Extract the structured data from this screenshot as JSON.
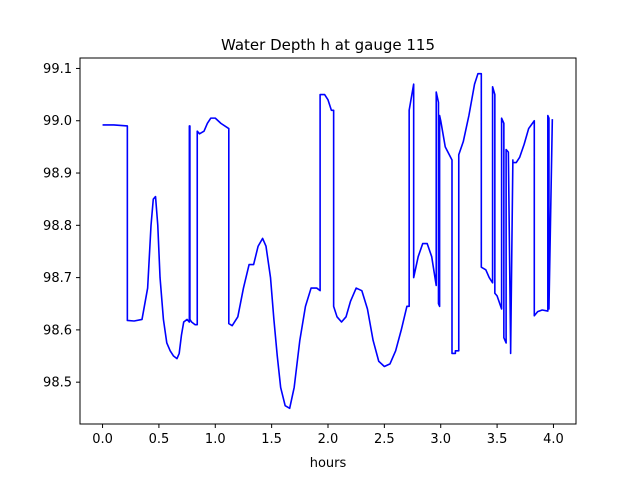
{
  "chart_data": {
    "type": "line",
    "title": "Water Depth h at gauge 115",
    "xlabel": "hours",
    "ylabel": "",
    "xlim": [
      -0.2,
      4.2
    ],
    "ylim": [
      98.42,
      99.12
    ],
    "xticks": [
      0.0,
      0.5,
      1.0,
      1.5,
      2.0,
      2.5,
      3.0,
      3.5,
      4.0
    ],
    "xtick_labels": [
      "0.0",
      "0.5",
      "1.0",
      "1.5",
      "2.0",
      "2.5",
      "3.0",
      "3.5",
      "4.0"
    ],
    "yticks": [
      98.5,
      98.6,
      98.7,
      98.8,
      98.9,
      99.0,
      99.1
    ],
    "ytick_labels": [
      "98.5",
      "98.6",
      "98.7",
      "98.8",
      "98.9",
      "99.0",
      "99.1"
    ],
    "grid": false,
    "legend": "none",
    "series": [
      {
        "color": "#0000ff",
        "x": [
          0.0,
          0.1,
          0.22,
          0.22,
          0.28,
          0.35,
          0.4,
          0.43,
          0.45,
          0.47,
          0.49,
          0.51,
          0.54,
          0.57,
          0.6,
          0.63,
          0.66,
          0.68,
          0.7,
          0.72,
          0.75,
          0.77,
          0.77,
          0.775,
          0.775,
          0.79,
          0.82,
          0.84,
          0.84,
          0.86,
          0.9,
          0.93,
          0.96,
          1.0,
          1.05,
          1.12,
          1.12,
          1.15,
          1.2,
          1.25,
          1.3,
          1.34,
          1.38,
          1.42,
          1.45,
          1.49,
          1.52,
          1.55,
          1.58,
          1.62,
          1.66,
          1.7,
          1.75,
          1.8,
          1.85,
          1.9,
          1.93,
          1.93,
          1.97,
          2.0,
          2.03,
          2.05,
          2.05,
          2.08,
          2.12,
          2.16,
          2.2,
          2.25,
          2.3,
          2.35,
          2.4,
          2.45,
          2.5,
          2.55,
          2.6,
          2.65,
          2.7,
          2.72,
          2.72,
          2.76,
          2.76,
          2.8,
          2.84,
          2.88,
          2.92,
          2.96,
          2.96,
          2.98,
          2.98,
          2.99,
          2.99,
          3.0,
          3.04,
          3.1,
          3.1,
          3.13,
          3.13,
          3.16,
          3.16,
          3.2,
          3.25,
          3.3,
          3.33,
          3.36,
          3.36,
          3.4,
          3.43,
          3.43,
          3.46,
          3.46,
          3.48,
          3.48,
          3.5,
          3.54,
          3.54,
          3.56,
          3.56,
          3.58,
          3.58,
          3.6,
          3.62,
          3.62,
          3.64,
          3.64,
          3.67,
          3.7,
          3.74,
          3.78,
          3.83,
          3.83,
          3.86,
          3.9,
          3.95,
          3.95,
          3.96,
          3.96,
          3.99
        ],
        "y": [
          98.992,
          98.992,
          98.99,
          98.618,
          98.617,
          98.62,
          98.68,
          98.8,
          98.85,
          98.855,
          98.8,
          98.7,
          98.62,
          98.575,
          98.56,
          98.55,
          98.545,
          98.555,
          98.59,
          98.615,
          98.62,
          98.615,
          98.99,
          98.99,
          98.62,
          98.615,
          98.61,
          98.61,
          98.98,
          98.975,
          98.98,
          98.995,
          99.005,
          99.005,
          98.995,
          98.985,
          98.612,
          98.608,
          98.625,
          98.68,
          98.725,
          98.725,
          98.76,
          98.775,
          98.76,
          98.7,
          98.62,
          98.55,
          98.49,
          98.455,
          98.45,
          98.49,
          98.58,
          98.645,
          98.68,
          98.68,
          98.675,
          99.05,
          99.05,
          99.04,
          99.02,
          99.02,
          98.645,
          98.625,
          98.615,
          98.625,
          98.655,
          98.68,
          98.675,
          98.64,
          98.58,
          98.54,
          98.53,
          98.535,
          98.56,
          98.6,
          98.645,
          98.645,
          99.02,
          99.07,
          98.7,
          98.74,
          98.765,
          98.765,
          98.74,
          98.685,
          99.055,
          99.035,
          98.65,
          98.645,
          99.01,
          99.0,
          98.95,
          98.925,
          98.555,
          98.555,
          98.56,
          98.56,
          98.935,
          98.96,
          99.01,
          99.07,
          99.09,
          99.09,
          98.72,
          98.715,
          98.7,
          98.7,
          98.69,
          99.065,
          99.05,
          98.67,
          98.665,
          98.64,
          99.005,
          98.995,
          98.585,
          98.575,
          98.945,
          98.94,
          98.565,
          98.555,
          98.925,
          98.92,
          98.92,
          98.93,
          98.955,
          98.985,
          99.0,
          98.627,
          98.635,
          98.638,
          98.636,
          99.01,
          99.005,
          98.64,
          99.003
        ]
      }
    ]
  }
}
